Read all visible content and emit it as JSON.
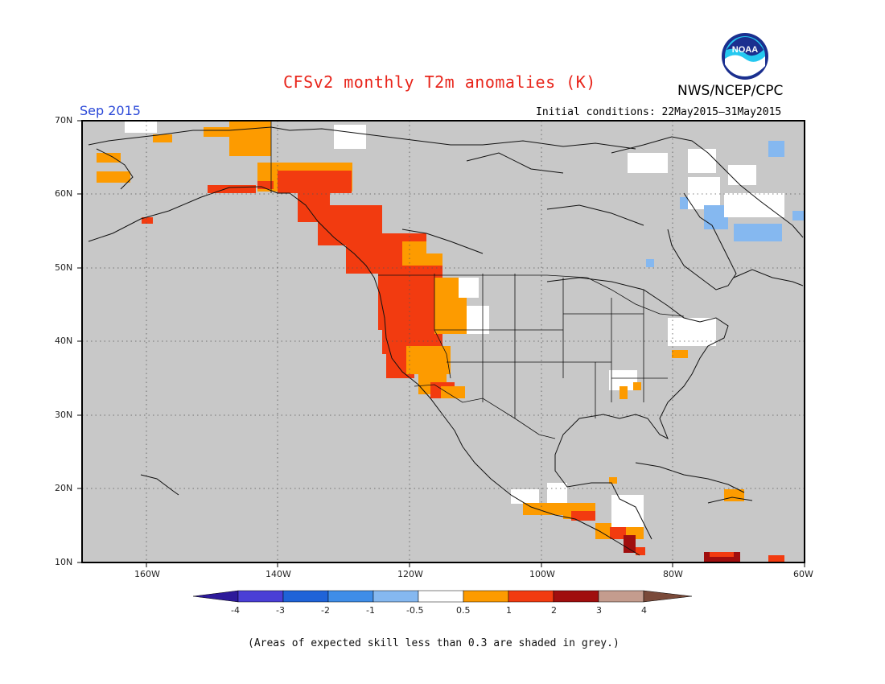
{
  "header": {
    "title": "CFSv2 monthly T2m anomalies (K)",
    "agency": "NWS/NCEP/CPC",
    "month": "Sep 2015",
    "initial_conditions": "Initial conditions: 22May2015–31May2015",
    "logo_text": "NOAA"
  },
  "map": {
    "latitude_labels": [
      "70N",
      "60N",
      "50N",
      "40N",
      "30N",
      "20N",
      "10N"
    ],
    "longitude_labels": [
      "160W",
      "140W",
      "120W",
      "100W",
      "80W",
      "60W"
    ],
    "background_color": "#c8c8c8",
    "grid": true
  },
  "colorbar": {
    "labels": [
      "-4",
      "-3",
      "-2",
      "-1",
      "-0.5",
      "0.5",
      "1",
      "2",
      "3",
      "4"
    ],
    "colors": [
      "#2d1a9a",
      "#4a3fd6",
      "#1f63d8",
      "#3f8de8",
      "#85b8f0",
      "#ffffff",
      "#fd9b00",
      "#f23b10",
      "#a00e0e",
      "#c49c8e",
      "#7a4a3a"
    ]
  },
  "footnote": "(Areas of expected skill less than 0.3 are shaded in grey.)"
}
